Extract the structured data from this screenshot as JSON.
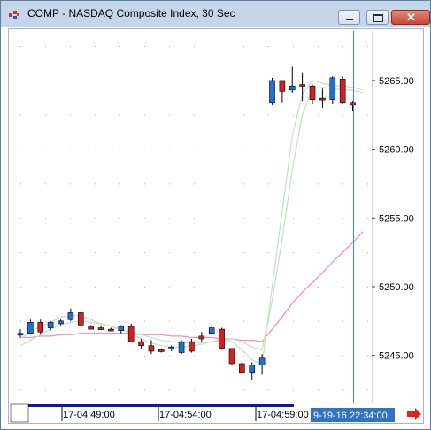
{
  "window": {
    "title": "COMP - NASDAQ Composite Index, 30 Sec",
    "colors": {
      "titlebar": "#c6d6ea",
      "border": "#5f7fa4"
    }
  },
  "chart_data": {
    "type": "candlestick",
    "title": "COMP - NASDAQ Composite Index, 30 Sec",
    "ylim": [
      5241.5,
      5268.6
    ],
    "y_ticks": [
      "5265.00",
      "5260.00",
      "5255.00",
      "5250.00",
      "5245.00"
    ],
    "y_tick_values": [
      5265,
      5260,
      5255,
      5250,
      5245
    ],
    "x_ticks": [
      "17-04:49:00",
      "17-04:54:00",
      "17-04:59:00"
    ],
    "crosshair_label": "9-19-16 22:34:00",
    "grid": true,
    "candles": [
      {
        "o": 5246.6,
        "h": 5246.9,
        "l": 5246.3,
        "c": 5246.6,
        "color": "blue"
      },
      {
        "o": 5246.6,
        "h": 5247.6,
        "l": 5246.5,
        "c": 5247.4,
        "color": "blue"
      },
      {
        "o": 5247.4,
        "h": 5247.6,
        "l": 5246.5,
        "c": 5246.7,
        "color": "red"
      },
      {
        "o": 5247.0,
        "h": 5247.5,
        "l": 5246.8,
        "c": 5247.4,
        "color": "blue"
      },
      {
        "o": 5247.3,
        "h": 5247.6,
        "l": 5247.2,
        "c": 5247.5,
        "color": "blue"
      },
      {
        "o": 5247.6,
        "h": 5248.4,
        "l": 5247.5,
        "c": 5248.1,
        "color": "blue"
      },
      {
        "o": 5248.1,
        "h": 5248.1,
        "l": 5247.2,
        "c": 5247.2,
        "color": "red"
      },
      {
        "o": 5247.1,
        "h": 5247.2,
        "l": 5246.9,
        "c": 5246.9,
        "color": "red"
      },
      {
        "o": 5247.0,
        "h": 5247.2,
        "l": 5246.9,
        "c": 5246.9,
        "color": "red"
      },
      {
        "o": 5246.9,
        "h": 5247.0,
        "l": 5246.8,
        "c": 5246.8,
        "color": "red"
      },
      {
        "o": 5246.8,
        "h": 5247.2,
        "l": 5246.6,
        "c": 5247.1,
        "color": "blue"
      },
      {
        "o": 5247.1,
        "h": 5247.3,
        "l": 5246.0,
        "c": 5246.0,
        "color": "red"
      },
      {
        "o": 5246.0,
        "h": 5246.2,
        "l": 5245.5,
        "c": 5245.7,
        "color": "red"
      },
      {
        "o": 5245.7,
        "h": 5246.1,
        "l": 5245.1,
        "c": 5245.3,
        "color": "red"
      },
      {
        "o": 5245.4,
        "h": 5245.5,
        "l": 5245.2,
        "c": 5245.3,
        "color": "red"
      },
      {
        "o": 5245.5,
        "h": 5245.7,
        "l": 5245.3,
        "c": 5245.6,
        "color": "blue"
      },
      {
        "o": 5245.2,
        "h": 5246.1,
        "l": 5245.1,
        "c": 5246.0,
        "color": "blue"
      },
      {
        "o": 5246.0,
        "h": 5246.2,
        "l": 5245.2,
        "c": 5245.3,
        "color": "red"
      },
      {
        "o": 5246.4,
        "h": 5246.7,
        "l": 5246.0,
        "c": 5246.2,
        "color": "red"
      },
      {
        "o": 5246.6,
        "h": 5247.2,
        "l": 5246.5,
        "c": 5247.0,
        "color": "blue"
      },
      {
        "o": 5246.9,
        "h": 5247.0,
        "l": 5245.4,
        "c": 5245.5,
        "color": "red"
      },
      {
        "o": 5245.5,
        "h": 5245.5,
        "l": 5244.3,
        "c": 5244.4,
        "color": "red"
      },
      {
        "o": 5244.4,
        "h": 5244.6,
        "l": 5243.6,
        "c": 5243.7,
        "color": "red"
      },
      {
        "o": 5243.7,
        "h": 5244.5,
        "l": 5243.2,
        "c": 5244.3,
        "color": "blue"
      },
      {
        "o": 5244.3,
        "h": 5245.1,
        "l": 5243.6,
        "c": 5244.8,
        "color": "blue"
      },
      {
        "o": 5263.4,
        "h": 5265.2,
        "l": 5263.2,
        "c": 5265.0,
        "color": "blue"
      },
      {
        "o": 5265.0,
        "h": 5265.0,
        "l": 5263.4,
        "c": 5264.2,
        "color": "red"
      },
      {
        "o": 5264.3,
        "h": 5266.0,
        "l": 5264.1,
        "c": 5264.6,
        "color": "blue"
      },
      {
        "o": 5264.6,
        "h": 5265.6,
        "l": 5263.5,
        "c": 5264.7,
        "color": "red"
      },
      {
        "o": 5264.6,
        "h": 5264.7,
        "l": 5263.3,
        "c": 5263.6,
        "color": "red"
      },
      {
        "o": 5263.7,
        "h": 5264.4,
        "l": 5263.0,
        "c": 5263.6,
        "color": "red"
      },
      {
        "o": 5263.6,
        "h": 5265.3,
        "l": 5263.3,
        "c": 5265.2,
        "color": "blue"
      },
      {
        "o": 5265.1,
        "h": 5265.3,
        "l": 5263.3,
        "c": 5263.4,
        "color": "red"
      },
      {
        "o": 5263.4,
        "h": 5263.5,
        "l": 5262.8,
        "c": 5263.2,
        "color": "red"
      }
    ],
    "ma_fast": [
      5246.2,
      5246.7,
      5247.1,
      5247.4,
      5247.8,
      5247.9,
      5247.9,
      5247.6,
      5247.3,
      5247.1,
      5246.9,
      5246.6,
      5246.2,
      5245.9,
      5245.7,
      5245.6,
      5245.6,
      5245.7,
      5245.8,
      5246.0,
      5246.2,
      5246.0,
      5245.4,
      5244.7,
      5244.3,
      5250.0,
      5255.5,
      5261.0,
      5264.0,
      5265.0,
      5264.8,
      5264.6,
      5264.6,
      5264.5,
      5264.3
    ],
    "ma_slow": [
      5245.7,
      5246.1,
      5246.5,
      5246.9,
      5247.2,
      5247.4,
      5247.5,
      5247.4,
      5247.3,
      5247.1,
      5246.9,
      5246.7,
      5246.5,
      5246.3,
      5246.1,
      5246.0,
      5245.9,
      5245.9,
      5245.9,
      5246.0,
      5246.1,
      5246.2,
      5246.0,
      5245.6,
      5245.4,
      5249.0,
      5253.5,
      5258.5,
      5262.5,
      5264.4,
      5264.5,
      5264.4,
      5264.3,
      5264.3,
      5264.1
    ],
    "ma_long": [
      5246.3,
      5246.3,
      5246.4,
      5246.4,
      5246.5,
      5246.5,
      5246.6,
      5246.6,
      5246.6,
      5246.6,
      5246.6,
      5246.6,
      5246.5,
      5246.5,
      5246.5,
      5246.4,
      5246.4,
      5246.3,
      5246.3,
      5246.3,
      5246.2,
      5246.2,
      5246.1,
      5246.1,
      5246.0,
      5246.9,
      5247.8,
      5248.8,
      5249.6,
      5250.3,
      5251.0,
      5251.8,
      5252.5,
      5253.2,
      5254.0
    ]
  }
}
